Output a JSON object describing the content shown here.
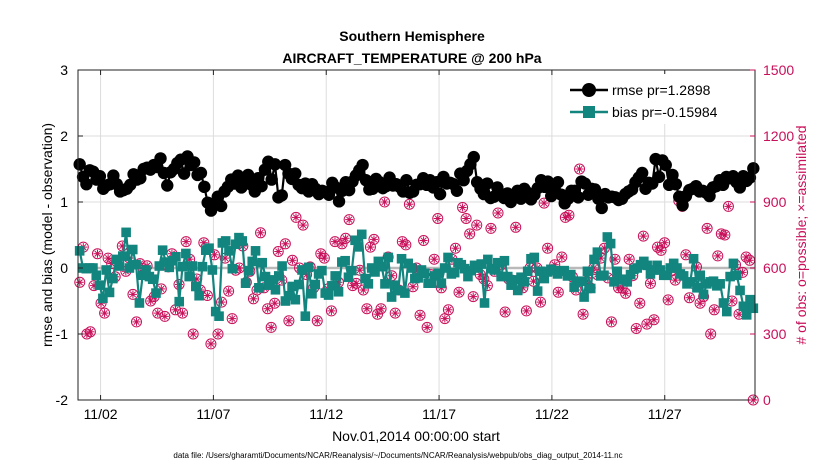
{
  "chart_data": {
    "type": "line",
    "title": "Southern Hemisphere",
    "subtitle": "AIRCRAFT_TEMPERATURE @ 200 hPa",
    "xlabel": "Nov.01,2014 00:00:00 start",
    "ylabel": "rmse and bias (model - observation)",
    "ylabel_right": "# of obs: o=possible; ×=assimilated",
    "xlim": [
      0.5,
      30.5
    ],
    "ylim": [
      -2,
      3
    ],
    "ylim_right": [
      0,
      1500
    ],
    "x_ticks": [
      {
        "value": 1.5,
        "label": "11/02"
      },
      {
        "value": 6.5,
        "label": "11/07"
      },
      {
        "value": 11.5,
        "label": "11/12"
      },
      {
        "value": 16.5,
        "label": "11/17"
      },
      {
        "value": 21.5,
        "label": "11/22"
      },
      {
        "value": 26.5,
        "label": "11/27"
      }
    ],
    "y_ticks": [
      -2,
      -1,
      0,
      1,
      2,
      3
    ],
    "y_ticks_right": [
      0,
      300,
      600,
      900,
      1200,
      1500
    ],
    "legend_position": "top-right",
    "footer": "data file: /Users/gharamti/Documents/NCAR/Reanalysis/~/Documents/NCAR/Reanalysis/webpub/obs_diag_output_2014-11.nc",
    "series": [
      {
        "name": "rmse pr=1.2898",
        "color": "#000000",
        "values": [
          1.57,
          1.38,
          1.27,
          1.48,
          1.46,
          1.34,
          1.39,
          1.2,
          1.25,
          1.27,
          1.4,
          1.27,
          1.16,
          1.18,
          1.2,
          1.26,
          1.42,
          1.34,
          1.36,
          1.5,
          1.52,
          1.49,
          1.56,
          1.53,
          1.66,
          1.44,
          1.25,
          1.45,
          1.5,
          1.59,
          1.64,
          1.43,
          1.69,
          1.56,
          1.6,
          1.41,
          1.44,
          1.23,
          0.99,
          0.87,
          0.97,
          1.08,
          0.94,
          1.16,
          1.23,
          1.34,
          1.28,
          1.4,
          1.22,
          1.31,
          1.41,
          1.26,
          1.16,
          1.36,
          1.24,
          1.49,
          1.61,
          1.34,
          1.57,
          1.07,
          1.1,
          1.56,
          1.43,
          1.35,
          1.43,
          1.26,
          1.21,
          1.28,
          1.16,
          1.27,
          1.2,
          1.12,
          1.17,
          1.15,
          1.11,
          1.29,
          1.22,
          1.01,
          1.17,
          1.3,
          1.18,
          1.31,
          1.4,
          1.48,
          1.56,
          1.33,
          1.19,
          1.2,
          1.35,
          1.3,
          1.21,
          1.24,
          1.37,
          1.25,
          1.27,
          1.23,
          1.16,
          1.33,
          1.14,
          1.16,
          1.26,
          1.27,
          1.36,
          1.26,
          1.33,
          1.22,
          1.3,
          1.12,
          1.38,
          1.28,
          1.29,
          1.27,
          1.17,
          1.43,
          1.33,
          1.47,
          1.57,
          1.68,
          1.3,
          1.2,
          1.12,
          1.28,
          1.06,
          1.08,
          1.22,
          1.12,
          1.06,
          1.13,
          1.0,
          1.11,
          1.17,
          1.05,
          1.2,
          1.14,
          1.04,
          1.11,
          1.21,
          1.33,
          1.23,
          1.31,
          1.09,
          1.2,
          1.3,
          1.11,
          0.98,
          1.05,
          1.17,
          1.17,
          1.07,
          1.31,
          1.28,
          1.11,
          1.2,
          1.19,
          1.05,
          0.91,
          1.12,
          1.07,
          1.08,
          1.07,
          1.03,
          1.05,
          1.12,
          1.16,
          1.19,
          1.3,
          1.37,
          1.44,
          1.2,
          1.29,
          1.28,
          1.65,
          1.38,
          1.63,
          1.56,
          1.26,
          1.41,
          1.27,
          1.08,
          0.95,
          1.09,
          1.18,
          1.2,
          1.24,
          1.16,
          1.17,
          1.14,
          1.09,
          1.22,
          1.24,
          1.33,
          1.26,
          1.38,
          1.36,
          1.39,
          1.3,
          1.22,
          1.39,
          1.32,
          1.37,
          1.51
        ]
      },
      {
        "name": "bias pr=-0.15984",
        "color": "#13857f",
        "values": [
          0.26,
          0.0,
          -0.01,
          0.0,
          0.0,
          -0.11,
          -0.26,
          -0.46,
          -0.03,
          -0.37,
          -0.16,
          0.13,
          0.03,
          0.18,
          0.54,
          0.0,
          0.28,
          0.05,
          -0.53,
          -0.11,
          -0.03,
          -0.13,
          -0.17,
          -0.38,
          0.03,
          0.27,
          0.09,
          0.01,
          0.11,
          0.17,
          -0.51,
          0.02,
          0.22,
          -0.13,
          0.03,
          -0.28,
          -0.42,
          0.02,
          0.27,
          0.3,
          -0.03,
          -0.66,
          -0.73,
          0.38,
          0.41,
          0.26,
          -0.01,
          0.36,
          0.46,
          0.41,
          -0.23,
          -0.04,
          0.1,
          0.26,
          -0.3,
          0.08,
          -0.13,
          -0.26,
          -0.18,
          -0.33,
          -0.12,
          0.03,
          -0.5,
          -0.42,
          -0.28,
          -0.48,
          -0.25,
          -0.03,
          -0.73,
          0.01,
          -0.39,
          -0.25,
          -0.09,
          -0.04,
          -0.38,
          -0.41,
          -0.27,
          -0.12,
          -0.36,
          0.09,
          0.11,
          -0.14,
          -0.04,
          0.42,
          0.32,
          0.51,
          -0.16,
          -0.24,
          0.0,
          -0.06,
          0.1,
          0.02,
          -0.24,
          0.16,
          -0.44,
          -0.26,
          -0.34,
          0.14,
          -0.38,
          0.07,
          0.0,
          -0.16,
          -0.15,
          -0.03,
          -0.08,
          -0.23,
          -0.23,
          -0.12,
          -0.08,
          -0.23,
          0.0,
          0.16,
          -0.09,
          -0.07,
          0.08,
          0.05,
          -0.01,
          -0.13,
          -0.04,
          0.04,
          0.0,
          0.06,
          -0.53,
          0.13,
          -0.01,
          -0.03,
          0.08,
          -0.13,
          0.11,
          -0.13,
          -0.26,
          -0.18,
          -0.34,
          -0.14,
          -0.21,
          -0.05,
          0.14,
          0.16,
          -0.35,
          -0.05,
          -0.16,
          -0.06,
          -0.02,
          -0.04,
          -0.09,
          -0.05,
          -0.04,
          -0.12,
          -0.1,
          -0.29,
          -0.21,
          -0.2,
          -0.44,
          -0.05,
          -0.31,
          0.13,
          0.24,
          -0.12,
          -0.11,
          0.47,
          0.37,
          -0.21,
          -0.05,
          -0.18,
          -0.17,
          -0.21,
          -0.1,
          -0.02,
          0.0,
          0.05,
          0.1,
          0.04,
          -0.09,
          -0.03,
          0.04,
          -0.03,
          -0.11,
          -0.11,
          0.0,
          0.07,
          0.0,
          -0.09,
          -0.12,
          -0.24,
          -0.21,
          0.14,
          -0.3,
          -0.11,
          -0.4,
          -0.24,
          -0.21,
          -0.2,
          -0.27,
          -0.24,
          -0.53,
          -0.66,
          -0.13,
          0.07,
          -0.11,
          -0.34,
          -0.58,
          -0.71,
          -0.48,
          -0.61
        ]
      },
      {
        "name": "obs possible",
        "color": "#c8105a",
        "values": [
          535,
          695,
          300,
          310,
          520,
          665,
          440,
          395,
          645,
          620,
          560,
          635,
          700,
          585,
          645,
          480,
          355,
          620,
          590,
          610,
          450,
          470,
          395,
          505,
          380,
          605,
          665,
          410,
          525,
          395,
          720,
          640,
          300,
          550,
          500,
          715,
          475,
          255,
          660,
          300,
          445,
          645,
          495,
          370,
          590,
          600,
          700,
          535,
          585,
          460,
          500,
          760,
          510,
          415,
          330,
          440,
          675,
          545,
          710,
          360,
          635,
          830,
          600,
          795,
          570,
          605,
          510,
          360,
          665,
          645,
          505,
          405,
          720,
          535,
          710,
          735,
          820,
          520,
          530,
          590,
          500,
          415,
          695,
          730,
          390,
          415,
          900,
          650,
          565,
          395,
          500,
          720,
          705,
          890,
          515,
          600,
          385,
          725,
          330,
          570,
          640,
          825,
          510,
          370,
          410,
          640,
          690,
          490,
          875,
          825,
          755,
          470,
          795,
          570,
          550,
          520,
          780,
          585,
          850,
          615,
          400,
          550,
          545,
          785,
          540,
          510,
          405,
          600,
          540,
          600,
          445,
          895,
          690,
          590,
          615,
          490,
          650,
          830,
          840,
          560,
          500,
          1050,
          390,
          540,
          510,
          600,
          570,
          645,
          690,
          555,
          355,
          640,
          510,
          510,
          485,
          640,
          565,
          325,
          440,
          745,
          345,
          530,
          365,
          695,
          680,
          715,
          455,
          590,
          545,
          905,
          880,
          660,
          465,
          530,
          605,
          440,
          470,
          780,
          300,
          410,
          655,
          755,
          750,
          880,
          450,
          615,
          390,
          580,
          650,
          635,
          0
        ]
      },
      {
        "name": "obs assimilated",
        "color": "#c8105a",
        "values": [
          535,
          695,
          300,
          310,
          520,
          665,
          440,
          395,
          645,
          620,
          560,
          635,
          700,
          585,
          645,
          480,
          355,
          620,
          590,
          610,
          450,
          470,
          395,
          505,
          380,
          605,
          665,
          410,
          525,
          395,
          720,
          640,
          300,
          550,
          500,
          715,
          475,
          255,
          660,
          300,
          445,
          645,
          495,
          370,
          590,
          600,
          700,
          535,
          585,
          460,
          500,
          760,
          510,
          415,
          330,
          440,
          675,
          545,
          710,
          360,
          635,
          830,
          600,
          795,
          570,
          605,
          510,
          360,
          665,
          645,
          505,
          405,
          720,
          535,
          710,
          735,
          820,
          520,
          530,
          590,
          500,
          415,
          695,
          730,
          390,
          415,
          900,
          650,
          565,
          395,
          500,
          720,
          705,
          890,
          515,
          600,
          385,
          725,
          330,
          570,
          640,
          825,
          510,
          370,
          410,
          640,
          690,
          490,
          875,
          825,
          755,
          470,
          795,
          570,
          550,
          520,
          780,
          585,
          850,
          615,
          400,
          550,
          545,
          785,
          540,
          510,
          405,
          600,
          540,
          600,
          445,
          895,
          690,
          590,
          615,
          490,
          650,
          830,
          840,
          560,
          500,
          1050,
          390,
          540,
          510,
          600,
          570,
          645,
          690,
          555,
          355,
          640,
          510,
          510,
          485,
          640,
          565,
          325,
          440,
          745,
          345,
          530,
          365,
          695,
          680,
          715,
          455,
          590,
          545,
          905,
          880,
          660,
          465,
          530,
          605,
          440,
          470,
          780,
          300,
          410,
          655,
          755,
          750,
          880,
          450,
          615,
          390,
          580,
          650,
          635,
          0
        ]
      }
    ]
  }
}
